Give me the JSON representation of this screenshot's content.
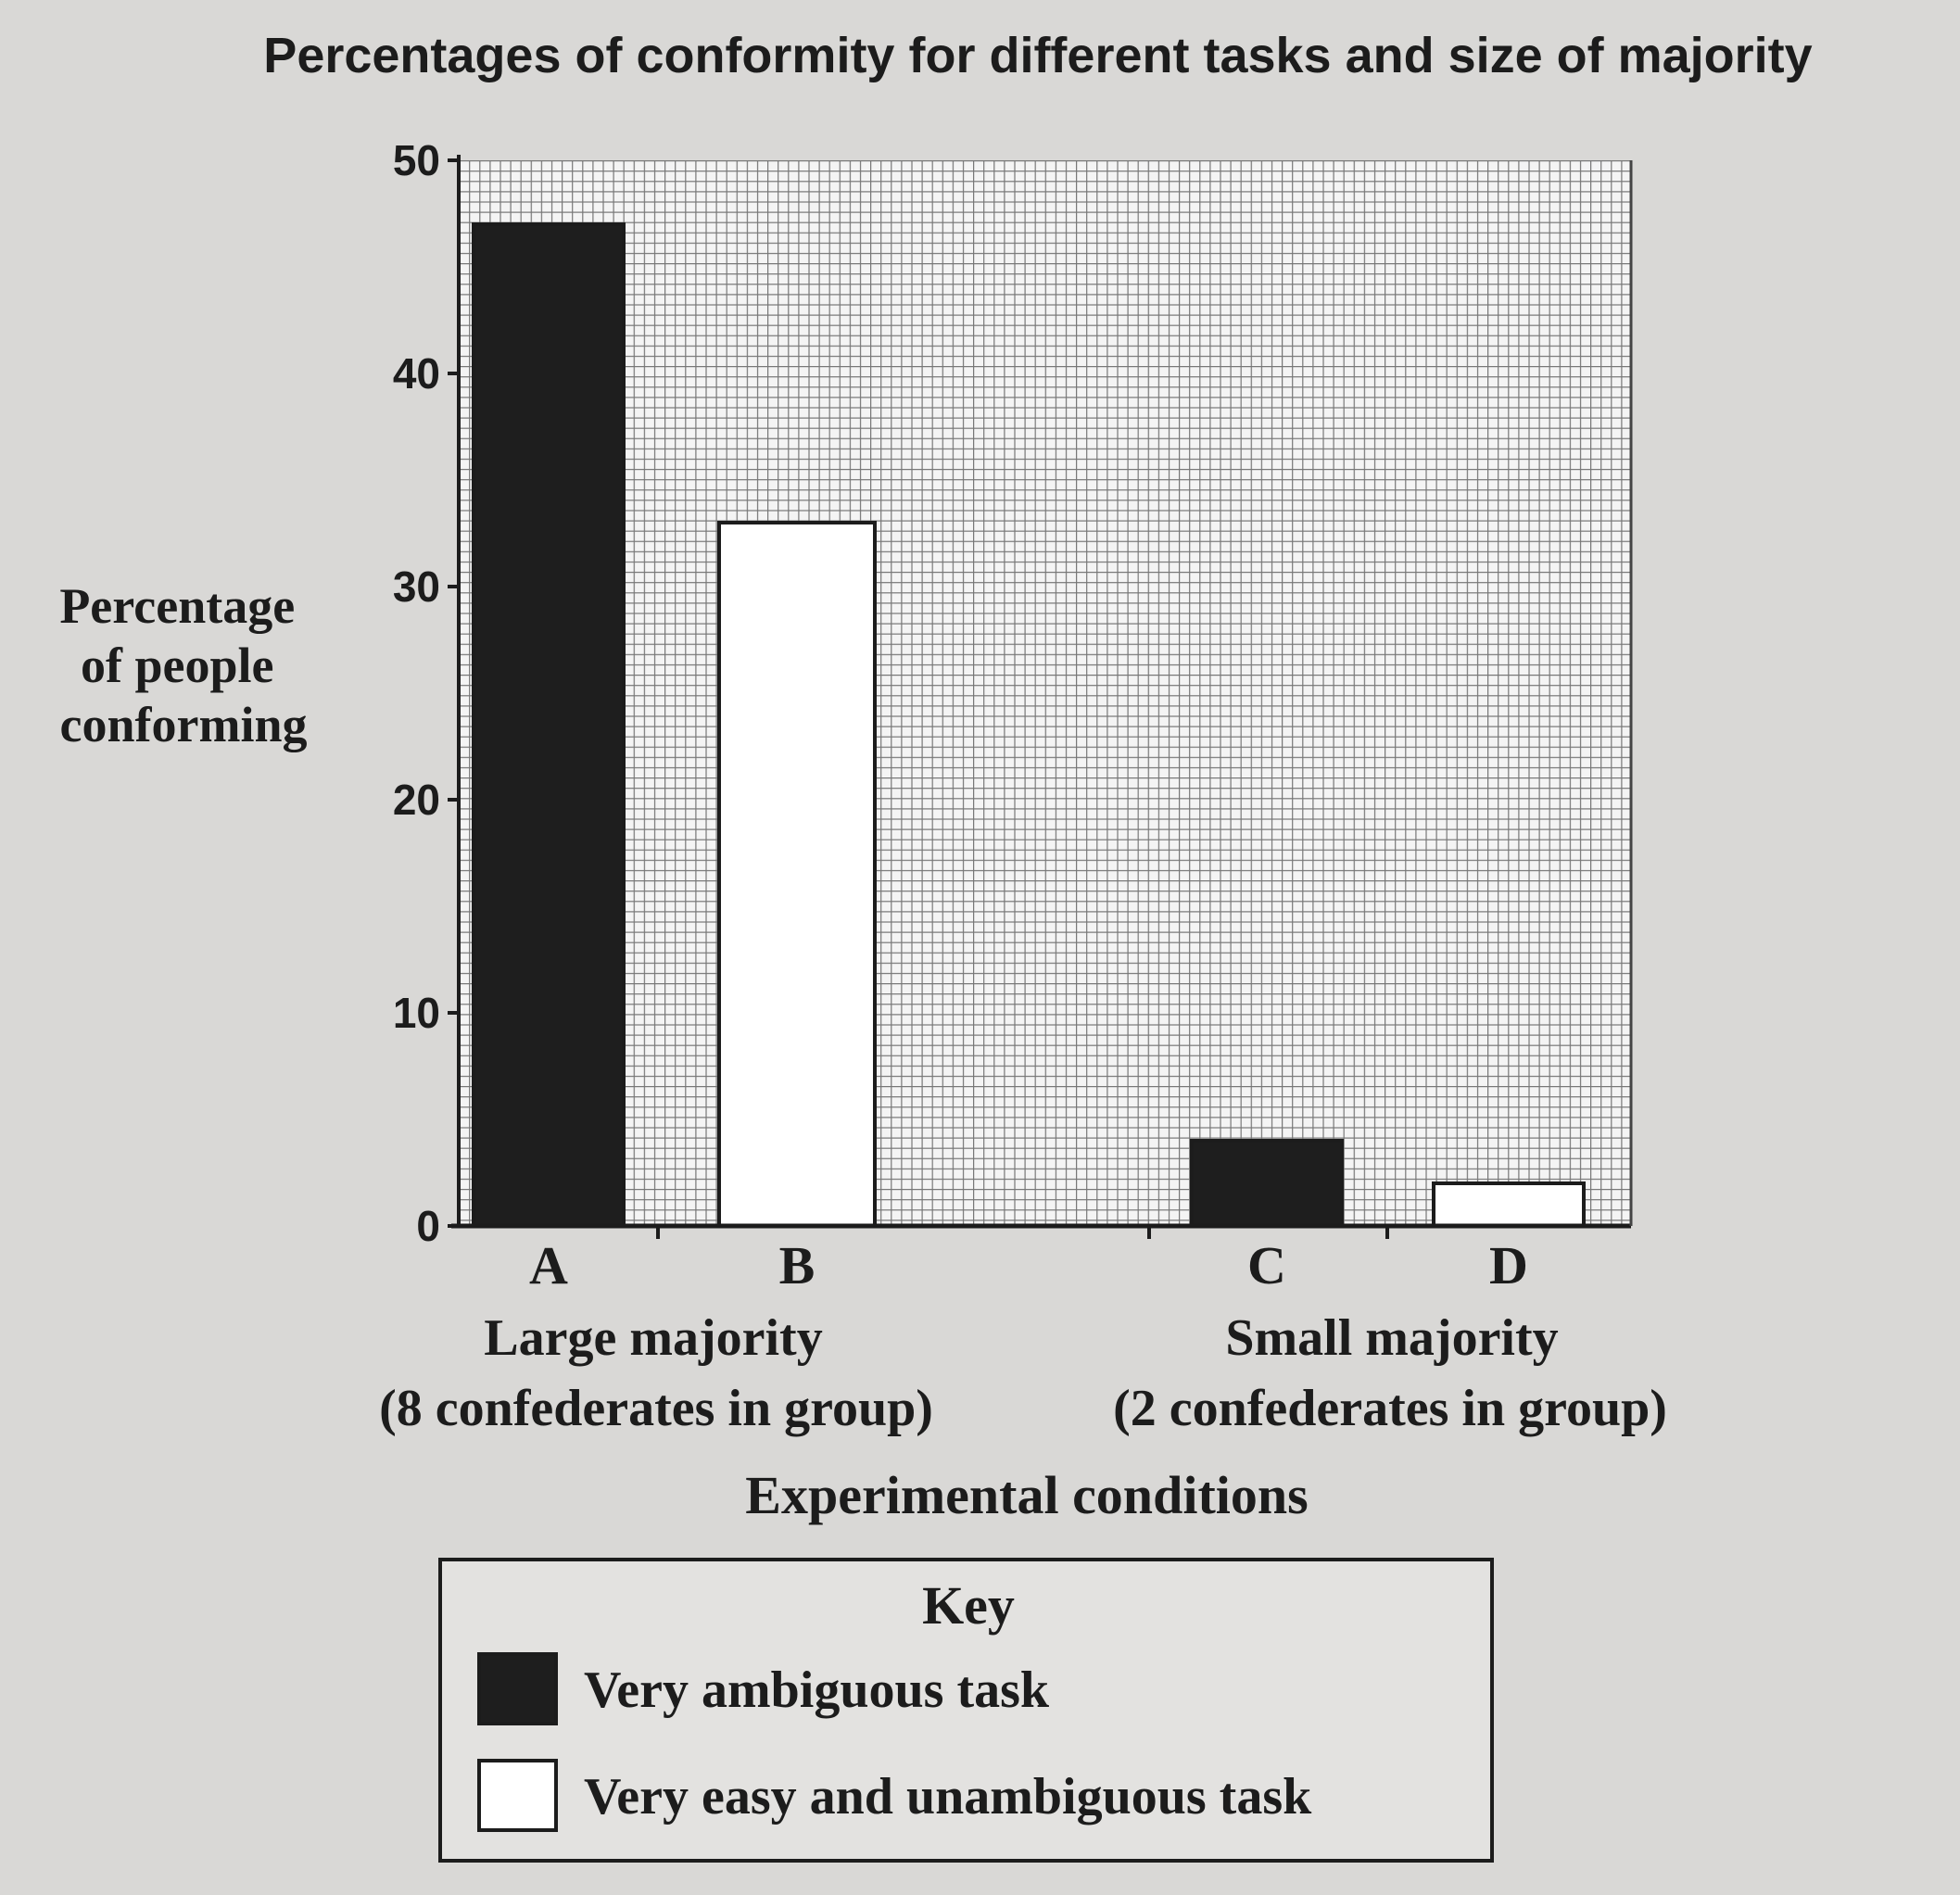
{
  "chart_data": {
    "type": "bar",
    "title": "Percentages of conformity for different tasks and size of majority",
    "ylabel": [
      "Percentage",
      "of people",
      "conforming"
    ],
    "xlabel": "Experimental conditions",
    "ylim": [
      0,
      50
    ],
    "yticks": [
      0,
      10,
      20,
      30,
      40,
      50
    ],
    "grid": true,
    "categories": [
      "A",
      "B",
      "C",
      "D"
    ],
    "groups": [
      {
        "label": "Large majority",
        "sublabel": "(8 confederates in group)"
      },
      {
        "label": "Small majority",
        "sublabel": "(2 confederates in group)"
      }
    ],
    "series": [
      {
        "name": "Very ambiguous task",
        "color": "#1e1e1e"
      },
      {
        "name": "Very easy and unambiguous task",
        "color": "#ffffff"
      }
    ],
    "bars": [
      {
        "category": "A",
        "series": "Very ambiguous task",
        "value": 47
      },
      {
        "category": "B",
        "series": "Very easy and unambiguous task",
        "value": 33
      },
      {
        "category": "C",
        "series": "Very ambiguous task",
        "value": 4
      },
      {
        "category": "D",
        "series": "Very easy and unambiguous task",
        "value": 2
      }
    ],
    "legend": {
      "title": "Key",
      "placement": "bottom",
      "items": [
        "Very ambiguous task",
        "Very easy and unambiguous task"
      ]
    }
  }
}
